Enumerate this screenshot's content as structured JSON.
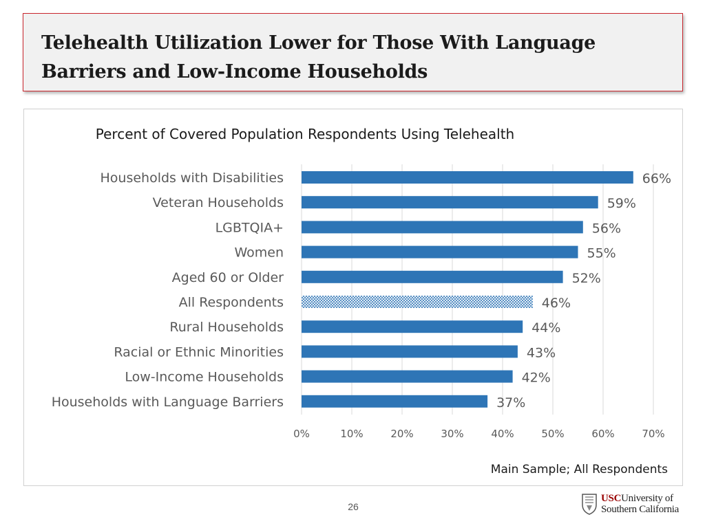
{
  "slide": {
    "title": "Telehealth Utilization Lower for Those With Language Barriers and Low-Income Households",
    "page_number": "26"
  },
  "logo": {
    "brand": "USC",
    "line1_rest": "University of",
    "line2": "Southern California",
    "brand_color": "#990000"
  },
  "chart_data": {
    "type": "bar",
    "orientation": "horizontal",
    "title": "Percent of Covered Population Respondents Using Telehealth",
    "categories": [
      "Households with Disabilities",
      "Veteran Households",
      "LGBTQIA+",
      "Women",
      "Aged 60 or Older",
      "All Respondents",
      "Rural Households",
      "Racial or Ethnic Minorities",
      "Low-Income Households",
      "Households with Language Barriers"
    ],
    "values": [
      66,
      59,
      56,
      55,
      52,
      46,
      44,
      43,
      42,
      37
    ],
    "value_labels": [
      "66%",
      "59%",
      "56%",
      "55%",
      "52%",
      "46%",
      "44%",
      "43%",
      "42%",
      "37%"
    ],
    "highlight_index": 5,
    "highlight_pattern": "crosshatch",
    "xlim": [
      0,
      70
    ],
    "x_ticks": [
      0,
      10,
      20,
      30,
      40,
      50,
      60,
      70
    ],
    "x_tick_labels": [
      "0%",
      "10%",
      "20%",
      "30%",
      "40%",
      "50%",
      "60%",
      "70%"
    ],
    "grid": true,
    "bar_color": "#2e75b6",
    "grid_color": "#d9d9d9",
    "note": "Main Sample; All Respondents"
  }
}
